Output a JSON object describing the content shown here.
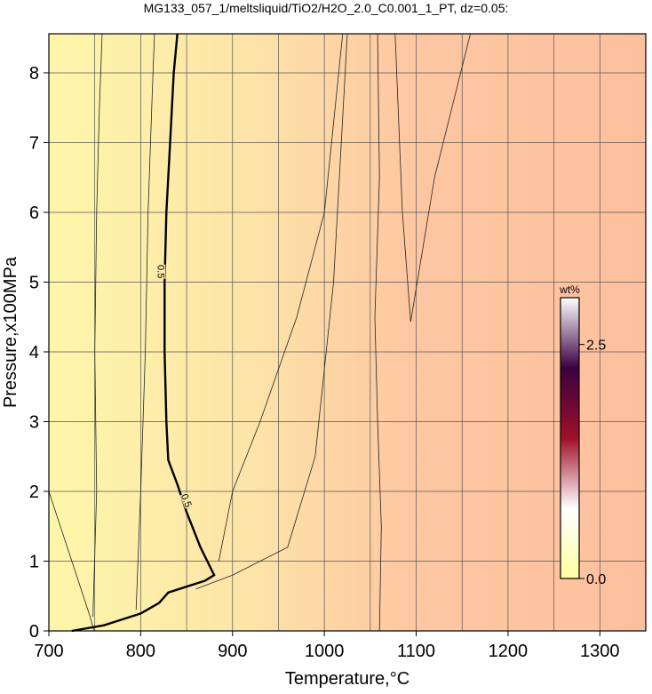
{
  "chart_data": {
    "type": "contour",
    "title": "MG133_057_1/meltsliquid/TiO2/H2O_2.0_C0.001_1_PT, dz=0.05:",
    "x_label": "Temperature,°C",
    "y_label": "Pressure,x100MPa",
    "xlim": [
      700,
      1350
    ],
    "ylim": [
      0,
      8.56
    ],
    "xticks": [
      700,
      800,
      900,
      1000,
      1100,
      1200,
      1300
    ],
    "yticks": [
      0,
      1,
      2,
      3,
      4,
      5,
      6,
      7,
      8
    ],
    "x_grid": [
      700,
      750,
      800,
      850,
      900,
      950,
      1000,
      1050,
      1100,
      1150,
      1200,
      1250,
      1300,
      1350
    ],
    "grid": true,
    "background_colors": [
      "#fdf7aa",
      "#fde3a8",
      "#fdc7a2",
      "#fdc09e"
    ],
    "series": [
      {
        "name": "0.5",
        "color": "#000000",
        "bold": true,
        "x": [
          725,
          760,
          800,
          820,
          830,
          870,
          880,
          865,
          850,
          840,
          830,
          828,
          826,
          826,
          828,
          832,
          836,
          840
        ],
        "y": [
          0,
          0.08,
          0.25,
          0.4,
          0.55,
          0.72,
          0.8,
          1.2,
          1.7,
          2.1,
          2.45,
          3,
          4,
          5,
          6,
          7,
          8,
          8.56
        ]
      }
    ],
    "contours": [
      {
        "x": [
          700,
          720,
          735,
          745,
          748,
          750,
          752
        ],
        "y": [
          2.0,
          1.2,
          0.6,
          0.2,
          0.05,
          0,
          0
        ]
      },
      {
        "x": [
          748,
          752,
          750,
          752,
          755,
          758
        ],
        "y": [
          0.2,
          2.0,
          4.0,
          6.0,
          7.5,
          8.56
        ]
      },
      {
        "x": [
          795,
          800,
          805,
          808,
          812,
          815
        ],
        "y": [
          0.3,
          2.0,
          4.0,
          6.0,
          7.5,
          8.56
        ]
      },
      {
        "x": [
          885,
          900,
          930,
          970,
          1000,
          1020
        ],
        "y": [
          1.0,
          2.0,
          3.0,
          4.5,
          6.0,
          8.56
        ]
      },
      {
        "x": [
          860,
          900,
          960,
          990,
          1010,
          1025
        ],
        "y": [
          0.6,
          0.8,
          1.2,
          2.5,
          5.0,
          8.56
        ]
      },
      {
        "x": [
          1060,
          1062,
          1058,
          1055,
          1060,
          1058
        ],
        "y": [
          0,
          1.5,
          3.0,
          4.5,
          6.5,
          8.56
        ]
      },
      {
        "x": [
          1077,
          1085,
          1094,
          1120,
          1159
        ],
        "y": [
          8.56,
          6.0,
          4.43,
          6.5,
          8.56
        ]
      }
    ],
    "colorbar": {
      "label": "wt%",
      "lim": [
        0,
        3.0
      ],
      "ticks": [
        {
          "value": 0,
          "label": "0.0"
        },
        2.5
      ],
      "colors": [
        "#ffffa0",
        "#ffffff",
        "#a0102a",
        "#3a0040",
        "#ffffff"
      ]
    }
  }
}
